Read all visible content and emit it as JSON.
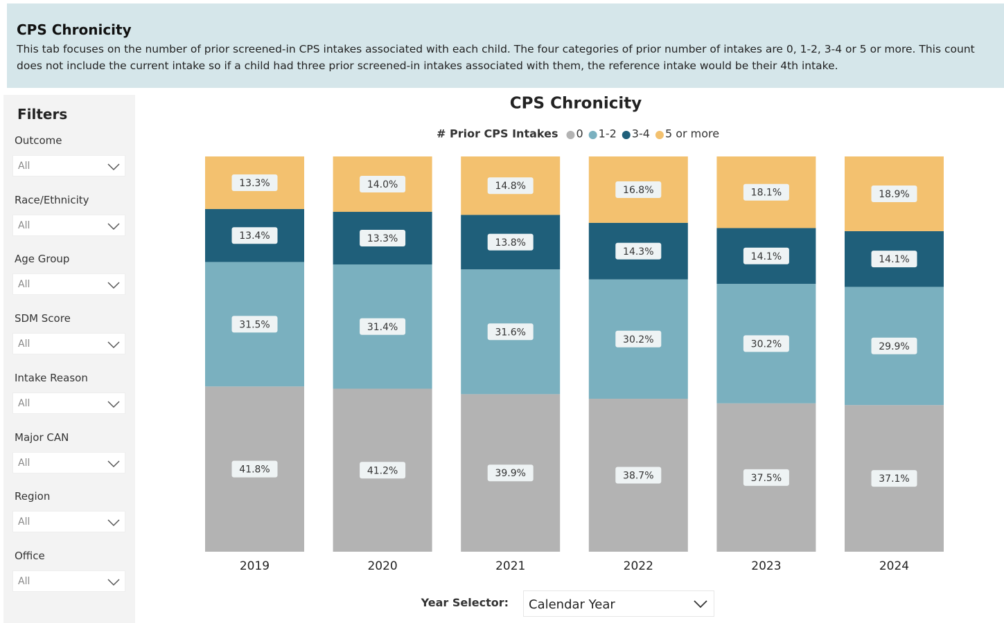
{
  "header": {
    "title": "CPS Chronicity",
    "description": "This tab focuses on the number of prior screened-in CPS intakes associated with each child. The four categories of prior number of intakes are 0, 1-2, 3-4 or 5 or more. This count does not include the current intake so if a child had three prior screened-in intakes associated with them, the reference intake would be their 4th intake."
  },
  "filters": {
    "title": "Filters",
    "items": [
      {
        "label": "Outcome",
        "value": "All"
      },
      {
        "label": "Race/Ethnicity",
        "value": "All"
      },
      {
        "label": "Age Group",
        "value": "All"
      },
      {
        "label": "SDM Score",
        "value": "All"
      },
      {
        "label": "Intake Reason",
        "value": "All"
      },
      {
        "label": "Major CAN",
        "value": "All"
      },
      {
        "label": "Region",
        "value": "All"
      },
      {
        "label": "Office",
        "value": "All"
      }
    ]
  },
  "chart_data": {
    "type": "bar",
    "stacked": true,
    "title": "CPS Chronicity",
    "legend_title": "# Prior CPS Intakes",
    "categories": [
      "2019",
      "2020",
      "2021",
      "2022",
      "2023",
      "2024"
    ],
    "series": [
      {
        "name": "0",
        "color": "#b3b3b3",
        "values": [
          41.8,
          41.2,
          39.9,
          38.7,
          37.5,
          37.1
        ],
        "value_labels": [
          "41.8%",
          "41.2%",
          "39.9%",
          "38.7%",
          "37.5%",
          "37.1%"
        ]
      },
      {
        "name": "1-2",
        "color": "#7ab0bf",
        "values": [
          31.5,
          31.4,
          31.6,
          30.2,
          30.2,
          29.9
        ],
        "value_labels": [
          "31.5%",
          "31.4%",
          "31.6%",
          "30.2%",
          "30.2%",
          "29.9%"
        ]
      },
      {
        "name": "3-4",
        "color": "#1f5f7a",
        "values": [
          13.4,
          13.3,
          13.8,
          14.3,
          14.1,
          14.1
        ],
        "value_labels": [
          "13.4%",
          "13.3%",
          "13.8%",
          "14.3%",
          "14.1%",
          "14.1%"
        ]
      },
      {
        "name": "5 or more",
        "color": "#f3c16f",
        "values": [
          13.3,
          14.0,
          14.8,
          16.8,
          18.1,
          18.9
        ],
        "value_labels": [
          "13.3%",
          "14.0%",
          "14.8%",
          "16.8%",
          "18.1%",
          "18.9%"
        ]
      }
    ]
  },
  "year_selector": {
    "label": "Year Selector:",
    "value": "Calendar Year"
  }
}
